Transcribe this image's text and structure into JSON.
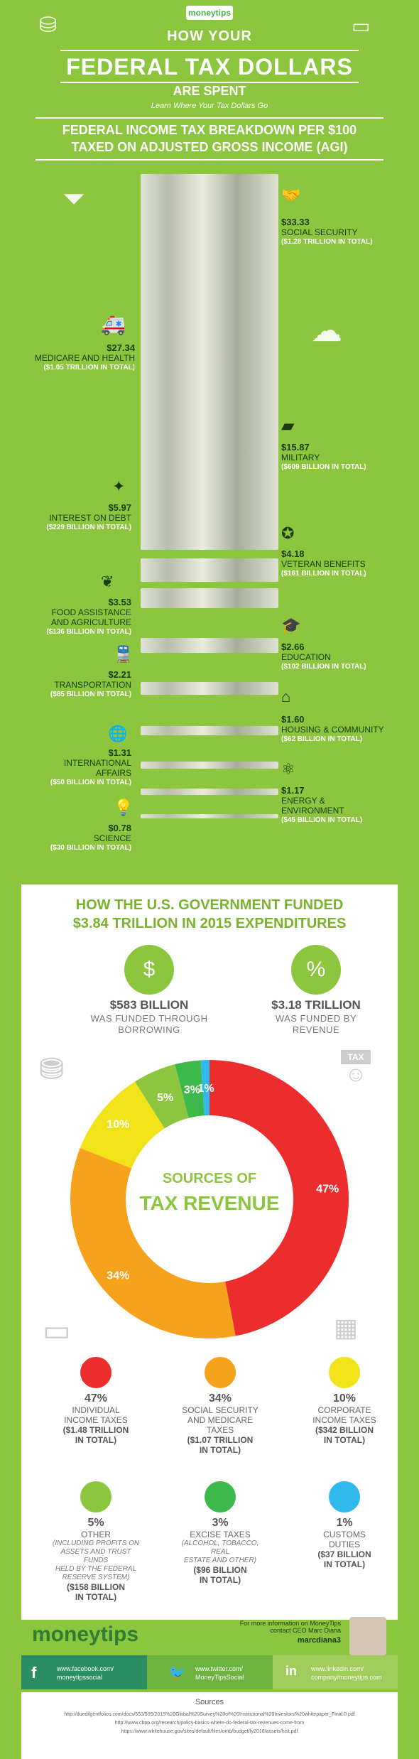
{
  "header": {
    "logo": "moneytips",
    "title_line1": "HOW YOUR",
    "title_line2": "FEDERAL TAX DOLLARS",
    "title_line3": "ARE SPENT",
    "tagline": "Learn Where Your Tax Dollars Go",
    "subhead_line1": "FEDERAL INCOME TAX BREAKDOWN PER $100",
    "subhead_line2": "TAXED ON ADJUSTED GROSS INCOME (AGI)"
  },
  "spending": [
    {
      "amount": "$33.33",
      "label": "SOCIAL SECURITY",
      "total": "($1.28 TRILLION IN TOTAL)",
      "icon": "handshake-icon",
      "fraction": 0.3333
    },
    {
      "amount": "$27.34",
      "label": "MEDICARE AND HEALTH",
      "total": "($1.05 TRILLION IN TOTAL)",
      "icon": "ambulance-icon",
      "fraction": 0.2734
    },
    {
      "amount": "$15.87",
      "label": "MILITARY",
      "total": "($609 BILLION IN TOTAL)",
      "icon": "tank-icon",
      "fraction": 0.1587
    },
    {
      "amount": "$5.97",
      "label": "INTEREST ON DEBT",
      "total": "($229 BILLION IN TOTAL)",
      "icon": "debt-icon",
      "fraction": 0.0597
    },
    {
      "amount": "$4.18",
      "label": "VETERAN BENEFITS",
      "total": "($161 BILLION IN TOTAL)",
      "icon": "medal-icon",
      "fraction": 0.0418
    },
    {
      "amount": "$3.53",
      "label_line1": "FOOD ASSISTANCE",
      "label_line2": "AND AGRICULTURE",
      "total": "($136 BILLION IN TOTAL)",
      "icon": "wheat-icon",
      "fraction": 0.0353
    },
    {
      "amount": "$2.66",
      "label": "EDUCATION",
      "total": "($102 BILLION IN TOTAL)",
      "icon": "graduation-cap-icon",
      "fraction": 0.0266
    },
    {
      "amount": "$2.21",
      "label": "TRANSPORTATION",
      "total": "($85 BILLION IN TOTAL)",
      "icon": "train-icon",
      "fraction": 0.0221
    },
    {
      "amount": "$1.60",
      "label": "HOUSING & COMMUNITY",
      "total": "($62 BILLION IN TOTAL)",
      "icon": "house-icon",
      "fraction": 0.016
    },
    {
      "amount": "$1.31",
      "label_line1": "INTERNATIONAL",
      "label_line2": "AFFAIRS",
      "total": "($50 BILLION IN TOTAL)",
      "icon": "globe-icon",
      "fraction": 0.0131
    },
    {
      "amount": "$1.17",
      "label_line1": "ENERGY &",
      "label_line2": "ENVIRONMENT",
      "total": "($45 BILLION IN TOTAL)",
      "icon": "atom-icon",
      "fraction": 0.0117
    },
    {
      "amount": "$0.78",
      "label": "SCIENCE",
      "total": "($30 BILLION IN TOTAL)",
      "icon": "lightbulb-icon",
      "fraction": 0.0078
    }
  ],
  "funding": {
    "title_line1": "HOW THE U.S. GOVERNMENT FUNDED",
    "title_line2": "$3.84 TRILLION IN 2015 EXPENDITURES",
    "borrowing_amount": "$583 BILLION",
    "borrowing_line1": "WAS FUNDED THROUGH",
    "borrowing_line2": "BORROWING",
    "revenue_amount": "$3.18 TRILLION",
    "revenue_line1": "WAS FUNDED BY",
    "revenue_line2": "REVENUE",
    "donut_line1": "SOURCES OF",
    "donut_line2": "TAX REVENUE",
    "tax_sign": "TAX"
  },
  "chart_data": {
    "type": "pie",
    "title": "SOURCES OF TAX REVENUE",
    "categories": [
      "INDIVIDUAL INCOME TAXES",
      "SOCIAL SECURITY AND MEDICARE TAXES",
      "CORPORATE INCOME TAXES",
      "OTHER",
      "EXCISE TAXES",
      "CUSTOMS DUTIES"
    ],
    "values": [
      47,
      34,
      10,
      5,
      3,
      1
    ],
    "labels": [
      "47%",
      "34%",
      "10%",
      "5%",
      "3%",
      "1%"
    ],
    "colors": [
      "#ec2d2d",
      "#f7a21c",
      "#f2e21a",
      "#8cc63f",
      "#3cb94a",
      "#2fb8ec"
    ]
  },
  "legend": [
    {
      "pct": "47%",
      "name_line1": "INDIVIDUAL",
      "name_line2": "INCOME TAXES",
      "amt_line1": "($1.48 TRILLION",
      "amt_line2": "IN TOTAL)",
      "color": "#ec2d2d"
    },
    {
      "pct": "34%",
      "name_line1": "SOCIAL SECURITY",
      "name_line2": "AND MEDICARE",
      "name_line3": "TAXES",
      "amt_line1": "($1.07 TRILLION",
      "amt_line2": "IN TOTAL)",
      "color": "#f7a21c"
    },
    {
      "pct": "10%",
      "name_line1": "CORPORATE",
      "name_line2": "INCOME TAXES",
      "amt_line1": "($342 BILLION",
      "amt_line2": "IN TOTAL)",
      "color": "#f2e21a"
    },
    {
      "pct": "5%",
      "name_line1": "OTHER",
      "note_line1": "(INCLUDING PROFITS ON",
      "note_line2": "ASSETS AND TRUST FUNDS",
      "note_line3": "HELD BY THE FEDERAL",
      "note_line4": "RESERVE SYSTEM)",
      "amt_line1": "($158 BILLION",
      "amt_line2": "IN TOTAL)",
      "color": "#8cc63f"
    },
    {
      "pct": "3%",
      "name_line1": "EXCISE TAXES",
      "note_line1": "(ALCOHOL, TOBACCO, REAL",
      "note_line2": "ESTATE AND OTHER)",
      "amt_line1": "($96 BILLION",
      "amt_line2": "IN TOTAL)",
      "color": "#3cb94a"
    },
    {
      "pct": "1%",
      "name_line1": "CUSTOMS",
      "name_line2": "DUTIES",
      "amt_line1": "($37 BILLION",
      "amt_line2": "IN TOTAL)",
      "color": "#2fb8ec"
    }
  ],
  "footer": {
    "logo": "moneytips",
    "info_line1": "For more information on MoneyTips",
    "info_line2": "contact CEO Marc Diana",
    "handle": "marcdiana3",
    "facebook_line1": "www.facebook.com/",
    "facebook_line2": "moneytipssocial",
    "twitter_line1": "www.twitter.com/",
    "twitter_line2": "MoneyTipsSocial",
    "linkedin_line1": "www.linkedin.com/",
    "linkedin_line2": "company/moneytips.com",
    "sources_title": "Sources",
    "source1": "http://duedilgentfolios.com/docs/553/595/2015%20Global%20Survey%20of%20Institutional%20Investors%20whitepaper_Final.0.pdf",
    "source2": "http://www.cbpp.org/research/policy-basics-where-do-federal-tax-revenues-come-from",
    "source3": "https://www.whitehouse.gov/sites/default/files/omb/budget/fy2016/assets/hist.pdf"
  }
}
